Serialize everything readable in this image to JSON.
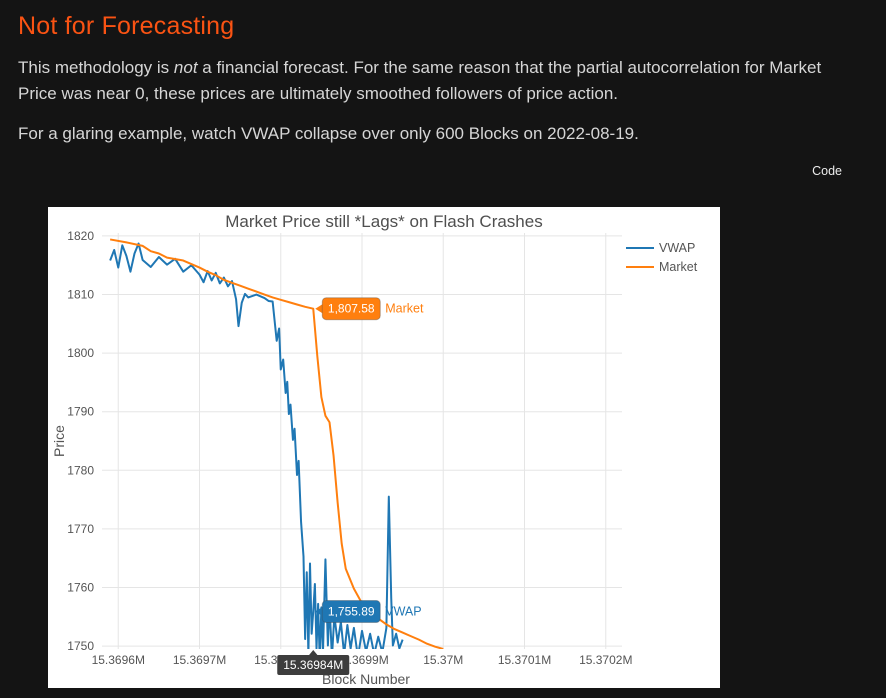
{
  "page": {
    "heading": "Not for Forecasting",
    "para1": {
      "pre": "This methodology is ",
      "italic": "not",
      "post": " a financial forecast. For the same reason that the partial autocorrelation for Market Price was near 0, these prices are ultimately smoothed followers of price action."
    },
    "para2": "For a glaring example, watch VWAP collapse over only 600 Blocks on 2022-08-19.",
    "code_button": "Code",
    "colors": {
      "background": "#141414",
      "heading": "#fa5313",
      "body_text": "#d6d6d6"
    }
  },
  "chart_data": {
    "type": "line",
    "title": "Market Price still *Lags* on Flash Crashes",
    "xlabel": "Block Number",
    "ylabel": "Price",
    "xlim": [
      15.36958,
      15.37022
    ],
    "ylim": [
      1749.5,
      1820.5
    ],
    "grid": true,
    "legend_position": "outside-top-right",
    "xticks": {
      "values": [
        15.3696,
        15.3697,
        15.3698,
        15.3699,
        15.37,
        15.3701,
        15.3702
      ],
      "labels": [
        "15.3696M",
        "15.3697M",
        "15.3698M",
        "15.3699M",
        "15.37M",
        "15.3701M",
        "15.3702M"
      ]
    },
    "yticks": {
      "values": [
        1750,
        1760,
        1770,
        1780,
        1790,
        1800,
        1810,
        1820
      ],
      "labels": [
        "1750",
        "1760",
        "1770",
        "1780",
        "1790",
        "1800",
        "1810",
        "1820"
      ]
    },
    "legend": [
      {
        "name": "VWAP",
        "color": "#1f77b4"
      },
      {
        "name": "Market",
        "color": "#ff7f0e"
      }
    ],
    "series": [
      {
        "name": "VWAP",
        "color": "#1f77b4",
        "x": [
          15.36959,
          15.369595,
          15.3696,
          15.369605,
          15.36961,
          15.369615,
          15.36962,
          15.369625,
          15.36963,
          15.36964,
          15.36965,
          15.36966,
          15.36967,
          15.36968,
          15.36969,
          15.3697,
          15.369705,
          15.36971,
          15.369715,
          15.36972,
          15.369725,
          15.36973,
          15.369735,
          15.36974,
          15.369745,
          15.369748,
          15.369752,
          15.369756,
          15.36976,
          15.36977,
          15.36978,
          15.369785,
          15.36979,
          15.369795,
          15.369798,
          15.3698,
          15.369803,
          15.369806,
          15.369808,
          15.36981,
          15.369812,
          15.369815,
          15.369817,
          15.36982,
          15.369822,
          15.369825,
          15.369828,
          15.36983,
          15.369832,
          15.369834,
          15.369836,
          15.369838,
          15.36984,
          15.369842,
          15.369844,
          15.369846,
          15.369848,
          15.36985,
          15.369852,
          15.369855,
          15.369858,
          15.36986,
          15.369863,
          15.369866,
          15.36987,
          15.369874,
          15.369878,
          15.369882,
          15.369886,
          15.36989,
          15.369895,
          15.3699,
          15.369905,
          15.36991,
          15.369915,
          15.36992,
          15.369925,
          15.36993,
          15.369933,
          15.369936,
          15.369938,
          15.369942,
          15.369946,
          15.36995
        ],
        "y": [
          1815.8,
          1817.6,
          1814.6,
          1818.4,
          1816.6,
          1813.9,
          1817.0,
          1818.7,
          1815.9,
          1814.7,
          1816.4,
          1815.1,
          1816.1,
          1813.9,
          1815.0,
          1813.4,
          1812.1,
          1814.0,
          1812.4,
          1813.7,
          1811.9,
          1812.9,
          1811.4,
          1812.3,
          1809.2,
          1804.6,
          1808.6,
          1810.1,
          1809.5,
          1810.0,
          1809.4,
          1808.9,
          1808.8,
          1802.1,
          1804.2,
          1797.2,
          1798.9,
          1793.2,
          1795.1,
          1789.6,
          1791.2,
          1785.2,
          1787.1,
          1779.2,
          1781.6,
          1771.2,
          1765.3,
          1751.2,
          1762.6,
          1748.6,
          1764.1,
          1752.1,
          1755.89,
          1760.6,
          1749.6,
          1757.2,
          1747.6,
          1756.6,
          1749.1,
          1764.8,
          1750.1,
          1757.1,
          1748.1,
          1755.2,
          1750.6,
          1754.1,
          1748.6,
          1753.6,
          1749.6,
          1753.1,
          1748.1,
          1752.6,
          1749.1,
          1752.1,
          1748.6,
          1751.6,
          1748.9,
          1753.1,
          1775.5,
          1758.1,
          1750.1,
          1752.1,
          1749.6,
          1751.1
        ]
      },
      {
        "name": "Market",
        "color": "#ff7f0e",
        "x": [
          15.36959,
          15.36961,
          15.36963,
          15.36964,
          15.36965,
          15.36966,
          15.36968,
          15.36969,
          15.3697,
          15.36971,
          15.36972,
          15.36973,
          15.36974,
          15.36975,
          15.36976,
          15.36977,
          15.36978,
          15.36979,
          15.3698,
          15.36981,
          15.36982,
          15.36983,
          15.36984,
          15.369845,
          15.36985,
          15.369855,
          15.36986,
          15.369865,
          15.36987,
          15.369875,
          15.36988,
          15.36989,
          15.3699,
          15.36991,
          15.36992,
          15.36993,
          15.36994,
          15.36995,
          15.36996,
          15.36997,
          15.36998,
          15.36999,
          15.37
        ],
        "y": [
          1819.4,
          1818.9,
          1818.3,
          1817.4,
          1817.0,
          1816.3,
          1815.8,
          1815.2,
          1814.6,
          1813.9,
          1813.3,
          1812.5,
          1812.0,
          1811.5,
          1811.0,
          1810.5,
          1810.0,
          1809.5,
          1809.1,
          1808.7,
          1808.3,
          1807.9,
          1807.58,
          1799.5,
          1792.5,
          1789.3,
          1788.2,
          1782.5,
          1774.5,
          1767.5,
          1763.2,
          1759.8,
          1757.3,
          1755.9,
          1754.7,
          1753.7,
          1752.9,
          1752.3,
          1751.7,
          1751.1,
          1750.4,
          1749.9,
          1749.5
        ]
      }
    ],
    "hover": {
      "x_value": 15.36984,
      "x_label": "15.36984M",
      "points": [
        {
          "series": "Market",
          "value": 1807.58,
          "label": "1,807.58",
          "color": "#ff7f0e"
        },
        {
          "series": "VWAP",
          "value": 1755.89,
          "label": "1,755.89",
          "color": "#1f77b4"
        }
      ]
    },
    "colors": {
      "plot_bg": "#ffffff",
      "grid": "#e5e5e5",
      "text": "#555555",
      "title": "#4f4f4f",
      "axis_tooltip_bg": "#3d3d3d",
      "hover_text": "#ffffff"
    }
  }
}
